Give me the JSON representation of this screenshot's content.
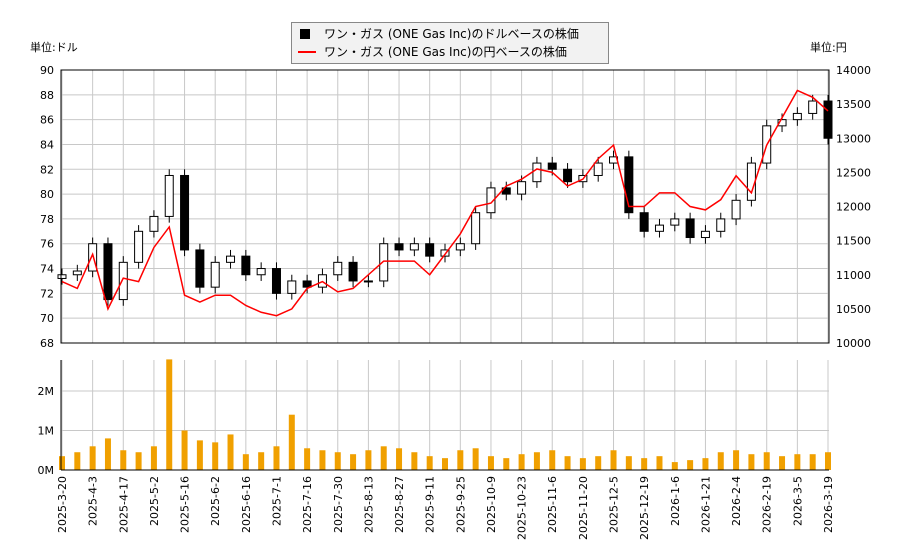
{
  "legend": {
    "usd_label": "ワン・ガス (ONE Gas Inc)のドルベースの株価",
    "jpy_label": "ワン・ガス (ONE Gas Inc)の円ベースの株価"
  },
  "units": {
    "left": "単位:ドル",
    "right": "単位:円"
  },
  "colors": {
    "usd": "#000000",
    "jpy": "#ff0000",
    "volume": "#f0a000",
    "grid": "#c8c8c8"
  },
  "chart_data": {
    "type": "candlestick+line+bar",
    "x_tick_labels": [
      "2025-3-20",
      "2025-4-3",
      "2025-4-17",
      "2025-5-2",
      "2025-5-16",
      "2025-6-2",
      "2025-6-16",
      "2025-7-1",
      "2025-7-16",
      "2025-7-30",
      "2025-8-13",
      "2025-8-27",
      "2025-9-11",
      "2025-9-25",
      "2025-10-9",
      "2025-10-23",
      "2025-11-6",
      "2025-11-20",
      "2025-12-5",
      "2025-12-19",
      "2026-1-6",
      "2026-1-21",
      "2026-2-4",
      "2026-2-19",
      "2026-3-5",
      "2026-3-19"
    ],
    "left_axis": {
      "ylim": [
        68,
        90
      ],
      "ticks": [
        "68",
        "70",
        "72",
        "74",
        "76",
        "78",
        "80",
        "82",
        "84",
        "86",
        "88",
        "90"
      ]
    },
    "right_axis": {
      "ylim": [
        10000,
        14000
      ],
      "ticks": [
        "10000",
        "10500",
        "11000",
        "11500",
        "12000",
        "12500",
        "13000",
        "13500",
        "14000"
      ]
    },
    "volume_axis": {
      "ticks": [
        "0M",
        "1M",
        "2M"
      ]
    },
    "usd_close": [
      73.5,
      73.8,
      76.0,
      71.5,
      74.5,
      77.0,
      78.2,
      81.5,
      75.5,
      72.5,
      74.5,
      75.0,
      73.5,
      74.0,
      72.0,
      73.0,
      72.5,
      73.5,
      74.5,
      73.0,
      73.0,
      76.0,
      75.5,
      76.0,
      75.0,
      75.5,
      76.0,
      78.5,
      80.5,
      80.0,
      81.0,
      82.5,
      82.0,
      81.0,
      81.5,
      82.5,
      83.0,
      78.5,
      77.0,
      77.5,
      78.0,
      76.5,
      77.0,
      78.0,
      79.5,
      82.5,
      85.5,
      86.0,
      86.5,
      87.5,
      84.5
    ],
    "jpy_close": [
      10900,
      10800,
      11300,
      10500,
      10950,
      10900,
      11400,
      11700,
      10700,
      10600,
      10700,
      10700,
      10550,
      10450,
      10400,
      10500,
      10800,
      10900,
      10750,
      10800,
      11000,
      11200,
      11200,
      11200,
      11000,
      11300,
      11600,
      12000,
      12050,
      12300,
      12400,
      12550,
      12500,
      12300,
      12400,
      12700,
      12900,
      12000,
      12000,
      12200,
      12200,
      12000,
      11950,
      12100,
      12450,
      12200,
      12900,
      13300,
      13700,
      13600,
      13400
    ],
    "volume_millions": [
      0.35,
      0.45,
      0.6,
      0.8,
      0.5,
      0.45,
      0.6,
      2.8,
      1.0,
      0.75,
      0.7,
      0.9,
      0.4,
      0.45,
      0.6,
      1.4,
      0.55,
      0.5,
      0.45,
      0.4,
      0.5,
      0.6,
      0.55,
      0.45,
      0.35,
      0.3,
      0.5,
      0.55,
      0.35,
      0.3,
      0.4,
      0.45,
      0.5,
      0.35,
      0.3,
      0.35,
      0.5,
      0.35,
      0.3,
      0.35,
      0.2,
      0.25,
      0.3,
      0.45,
      0.5,
      0.4,
      0.45,
      0.35,
      0.4,
      0.4,
      0.45
    ]
  }
}
